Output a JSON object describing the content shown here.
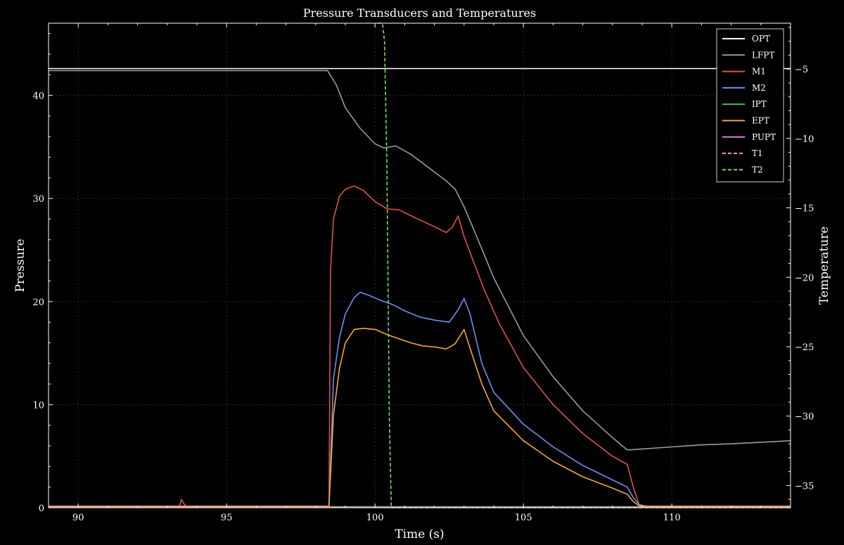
{
  "chart_data": {
    "type": "line",
    "title": "Pressure Transducers and Temperatures",
    "xlabel": "Time (s)",
    "ylabel": "Pressure",
    "y2label": "Temperature",
    "xlim": [
      89,
      114
    ],
    "ylim": [
      0,
      47
    ],
    "y2lim": [
      -36.6,
      -1.7
    ],
    "xticks": [
      90,
      95,
      100,
      105,
      110
    ],
    "yticks": [
      0,
      10,
      20,
      30,
      40
    ],
    "y2ticks": [
      -35,
      -30,
      -25,
      -20,
      -15,
      -10,
      -5
    ],
    "grid": true,
    "legend": "top-right",
    "background": "#000000",
    "series": [
      {
        "name": "OPT",
        "axis": "left",
        "color": "#ffffff",
        "dash": "solid",
        "x": [
          89,
          98.4,
          98.45,
          108.4,
          108.45,
          114
        ],
        "y": [
          42.6,
          42.6,
          42.6,
          42.6,
          42.6,
          42.6
        ]
      },
      {
        "name": "LFPT",
        "axis": "left",
        "color": "#9a9a9a",
        "dash": "solid",
        "x": [
          89,
          98.4,
          98.7,
          99.0,
          99.5,
          100.0,
          100.3,
          100.7,
          101.2,
          101.8,
          102.4,
          102.7,
          103.0,
          103.5,
          104.0,
          105.0,
          106.0,
          107.0,
          108.0,
          108.5,
          109,
          110,
          111,
          112,
          113,
          114
        ],
        "y": [
          42.4,
          42.4,
          41.0,
          38.8,
          36.8,
          35.3,
          34.9,
          35.1,
          34.3,
          33.0,
          31.7,
          30.9,
          29.2,
          25.8,
          22.3,
          16.7,
          12.7,
          9.4,
          6.8,
          5.6,
          5.7,
          5.9,
          6.1,
          6.2,
          6.35,
          6.5
        ]
      },
      {
        "name": "M1",
        "axis": "left",
        "color": "#e0504a",
        "dash": "solid",
        "x": [
          89,
          93.4,
          93.48,
          93.56,
          93.64,
          98.45,
          98.5,
          98.6,
          98.8,
          99.0,
          99.3,
          99.6,
          100.0,
          100.4,
          100.8,
          101.3,
          101.9,
          102.4,
          102.6,
          102.8,
          103.0,
          103.3,
          103.7,
          104.2,
          105.0,
          106.0,
          107.0,
          108.0,
          108.5,
          108.7,
          108.9,
          109.2,
          114
        ],
        "y": [
          0.1,
          0.1,
          0.8,
          0.4,
          0.1,
          0.1,
          23.0,
          28.0,
          30.2,
          30.9,
          31.2,
          30.8,
          29.7,
          29.0,
          28.9,
          28.2,
          27.4,
          26.7,
          27.2,
          28.3,
          26.3,
          24.0,
          21.0,
          17.8,
          13.6,
          10.0,
          7.2,
          5.0,
          4.2,
          2.0,
          0.3,
          0.1,
          0.1
        ]
      },
      {
        "name": "M2",
        "axis": "left",
        "color": "#6f8ff0",
        "dash": "solid",
        "x": [
          89,
          98.45,
          98.6,
          98.8,
          99.0,
          99.3,
          99.5,
          99.8,
          100.2,
          100.6,
          101.0,
          101.5,
          102.0,
          102.5,
          102.8,
          103.0,
          103.2,
          103.6,
          104.0,
          105.0,
          106.0,
          107.0,
          108.0,
          108.5,
          108.7,
          108.9,
          109.2,
          114
        ],
        "y": [
          0.1,
          0.1,
          12.5,
          16.5,
          18.8,
          20.4,
          20.9,
          20.6,
          20.1,
          19.7,
          19.1,
          18.5,
          18.2,
          18.0,
          19.2,
          20.3,
          18.8,
          14.0,
          11.2,
          8.1,
          5.9,
          4.1,
          2.7,
          2.0,
          1.0,
          0.3,
          0.1,
          0.1
        ]
      },
      {
        "name": "IPT",
        "axis": "left",
        "color": "#59b84d",
        "dash": "solid",
        "x": [
          89,
          114
        ],
        "y": [
          0.1,
          0.1
        ]
      },
      {
        "name": "EPT",
        "axis": "left",
        "color": "#f2a93b",
        "dash": "solid",
        "x": [
          89,
          98.45,
          98.6,
          98.8,
          99.0,
          99.3,
          99.6,
          100.0,
          100.4,
          100.8,
          101.2,
          101.6,
          102.0,
          102.4,
          102.7,
          103.0,
          103.2,
          103.6,
          104.0,
          105.0,
          106.0,
          107.0,
          108.0,
          108.5,
          108.7,
          108.9,
          109.2,
          114
        ],
        "y": [
          0.15,
          0.15,
          9.0,
          13.5,
          16.0,
          17.3,
          17.4,
          17.3,
          16.8,
          16.4,
          16.0,
          15.7,
          15.6,
          15.4,
          15.9,
          17.3,
          15.5,
          12.0,
          9.4,
          6.5,
          4.5,
          3.0,
          1.9,
          1.3,
          0.6,
          0.2,
          0.15,
          0.15
        ]
      },
      {
        "name": "PUPT",
        "axis": "left",
        "color": "#d783d9",
        "dash": "solid",
        "x": [
          89,
          114
        ],
        "y": [
          0.05,
          0.05
        ]
      },
      {
        "name": "T1",
        "axis": "right",
        "color": "#ff9a9a",
        "dash": "dashed",
        "x": [],
        "y": []
      },
      {
        "name": "T2",
        "axis": "right",
        "color": "#7ddc6d",
        "dash": "dashed",
        "x": [
          100.1,
          100.25,
          100.32,
          100.4,
          100.48,
          100.55,
          114
        ],
        "y": [
          -1.7,
          -1.7,
          -3.0,
          -12.0,
          -30.0,
          -36.6,
          -36.6
        ]
      }
    ]
  }
}
